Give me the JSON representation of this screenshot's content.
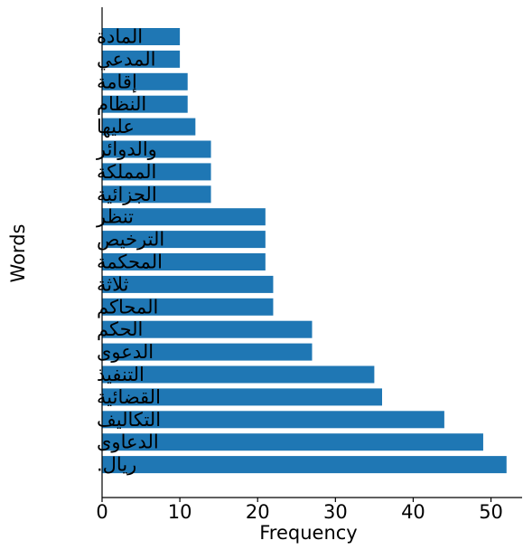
{
  "chart_data": {
    "type": "bar",
    "orientation": "horizontal",
    "categories": [
      "ريال.",
      "الدعاوى",
      "التكاليف",
      "القضائية",
      "التنفيذ",
      "الدعوى",
      "الحكم",
      "المحاكم",
      "ثلاثة",
      "المحكمة",
      "الترخيص",
      "تنظر",
      "الجزائية",
      "المملكة",
      "والدوائر",
      "عليها",
      "النظام",
      "إقامة",
      "المدعي",
      "المادة"
    ],
    "values": [
      52,
      49,
      44,
      36,
      35,
      27,
      27,
      22,
      22,
      21,
      21,
      21,
      14,
      14,
      14,
      12,
      11,
      11,
      10,
      10
    ],
    "xlabel": "Frequency",
    "ylabel": "Words",
    "xlim": [
      0,
      54
    ],
    "xticks": [
      0,
      10,
      20,
      30,
      40,
      50
    ],
    "bar_color": "#1f77b4",
    "grid": false,
    "legend": "none"
  }
}
